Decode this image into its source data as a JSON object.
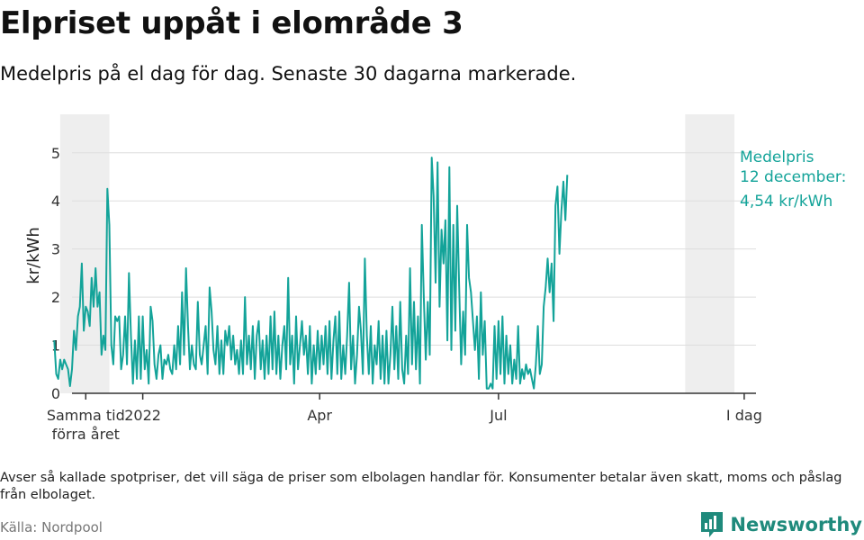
{
  "title": "Elpriset uppåt i elområde 3",
  "subtitle": "Medelpris på el dag för dag.  Senaste 30 dagarna markerade.",
  "footnote": "Avser så kallade spotpriser, det vill säga de priser som elbolagen handlar för. Konsumenter betalar även skatt, moms och påslag från elbolaget.",
  "source": "Källa: Nordpool",
  "brand": "Newsworthy",
  "colors": {
    "line": "#13a399",
    "shade": "#eeeeee",
    "grid": "#dddddd",
    "axis": "#333333",
    "brand": "#1f8a7c"
  },
  "chart_data": {
    "type": "line",
    "ylabel": "kr/kWh",
    "xlabel": "",
    "ylim": [
      0,
      5.8
    ],
    "y_ticks": [
      0,
      1,
      2,
      3,
      4,
      5
    ],
    "x_range": [
      -7,
      341
    ],
    "x_ticks": [
      {
        "day": 0,
        "label": "Samma tid",
        "label2": "förra året"
      },
      {
        "day": 29,
        "label": "2022",
        "label2": ""
      },
      {
        "day": 119,
        "label": "Apr",
        "label2": ""
      },
      {
        "day": 210,
        "label": "Jul",
        "label2": ""
      },
      {
        "day": 335,
        "label": "I dag",
        "label2": ""
      }
    ],
    "shaded_ranges": [
      [
        -13,
        12
      ],
      [
        305,
        330
      ]
    ],
    "annotation": {
      "line1": "Medelpris",
      "line2": "12 december:",
      "line3": "4,54 kr/kWh"
    },
    "series": [
      {
        "name": "Medelpris",
        "start_day": -16,
        "values": [
          1.1,
          0.4,
          0.3,
          0.7,
          0.5,
          0.7,
          0.6,
          0.5,
          0.15,
          0.5,
          1.3,
          0.9,
          1.6,
          1.8,
          2.7,
          1.3,
          1.8,
          1.7,
          1.4,
          2.4,
          1.8,
          2.6,
          1.8,
          2.1,
          0.8,
          1.2,
          0.9,
          4.25,
          3.5,
          1.0,
          0.6,
          1.6,
          1.5,
          1.6,
          0.5,
          0.8,
          1.6,
          0.6,
          2.5,
          1.2,
          0.2,
          1.1,
          0.3,
          1.6,
          0.3,
          1.6,
          0.5,
          0.9,
          0.2,
          1.8,
          1.5,
          0.6,
          0.3,
          0.8,
          1.0,
          0.3,
          0.7,
          0.6,
          0.8,
          0.5,
          0.4,
          1.0,
          0.5,
          1.4,
          0.6,
          2.1,
          0.8,
          2.6,
          1.4,
          0.5,
          1.0,
          0.6,
          0.5,
          1.9,
          0.8,
          0.6,
          1.0,
          1.4,
          0.4,
          2.2,
          1.7,
          0.9,
          0.6,
          1.4,
          0.4,
          1.1,
          0.4,
          1.3,
          1.0,
          1.4,
          0.7,
          1.2,
          0.6,
          0.9,
          0.4,
          1.1,
          0.4,
          2.0,
          0.6,
          1.2,
          0.5,
          1.4,
          0.3,
          1.2,
          1.5,
          0.5,
          1.1,
          0.3,
          1.2,
          0.4,
          1.6,
          0.5,
          1.7,
          0.4,
          1.2,
          0.3,
          1.0,
          1.4,
          0.5,
          2.4,
          0.6,
          1.2,
          0.2,
          1.6,
          0.5,
          1.0,
          1.5,
          0.8,
          1.2,
          0.4,
          1.4,
          0.2,
          1.0,
          0.4,
          1.3,
          0.5,
          1.2,
          0.6,
          1.4,
          0.4,
          1.5,
          0.3,
          1.1,
          1.6,
          0.4,
          1.7,
          0.3,
          1.0,
          0.4,
          1.2,
          2.3,
          0.5,
          1.2,
          0.2,
          0.8,
          1.8,
          1.3,
          0.4,
          2.8,
          1.2,
          0.4,
          1.4,
          0.2,
          1.0,
          0.6,
          1.5,
          0.3,
          1.2,
          0.2,
          1.3,
          0.2,
          0.8,
          1.8,
          0.5,
          1.4,
          0.3,
          1.9,
          0.5,
          0.2,
          1.2,
          0.4,
          2.6,
          0.6,
          1.9,
          0.5,
          1.6,
          0.2,
          3.5,
          2.0,
          0.7,
          1.9,
          0.8,
          4.9,
          4.1,
          2.3,
          4.8,
          1.8,
          3.4,
          2.7,
          3.6,
          1.1,
          4.7,
          0.9,
          3.5,
          1.3,
          3.9,
          2.2,
          0.6,
          1.7,
          0.8,
          3.5,
          2.4,
          2.1,
          1.5,
          0.9,
          1.6,
          0.3,
          2.1,
          0.8,
          1.5,
          0.1,
          0.1,
          0.2,
          0.1,
          1.4,
          0.3,
          1.5,
          0.4,
          1.6,
          0.2,
          1.2,
          0.4,
          1.0,
          0.2,
          0.7,
          0.3,
          1.4,
          0.2,
          0.5,
          0.3,
          0.6,
          0.4,
          0.5,
          0.3,
          0.1,
          0.6,
          1.4,
          0.4,
          0.6,
          1.8,
          2.2,
          2.8,
          2.1,
          2.7,
          1.5,
          3.9,
          4.3,
          2.9,
          3.8,
          4.4,
          3.6,
          4.54
        ]
      }
    ]
  }
}
